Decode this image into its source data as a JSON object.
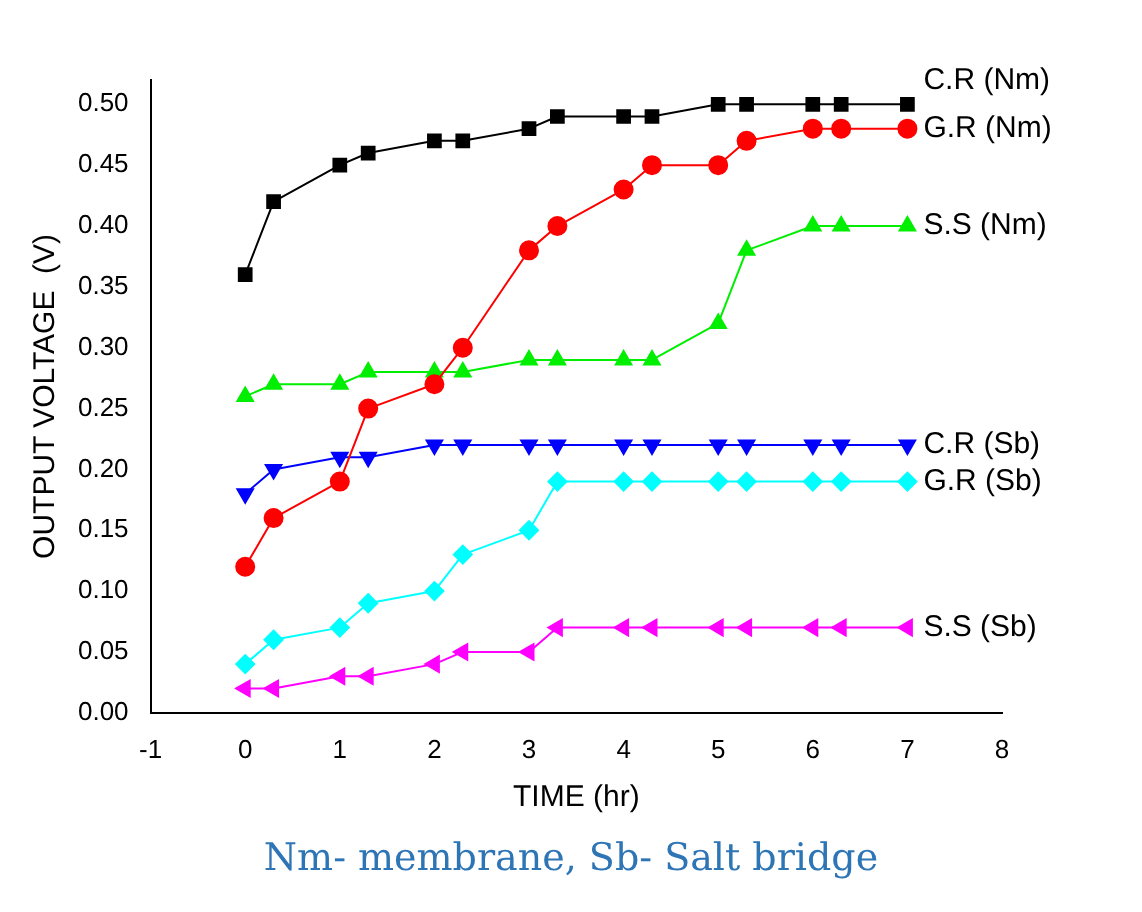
{
  "chart_data": {
    "type": "line",
    "xlabel": "TIME (hr)",
    "ylabel": "OUTPUT VOLTAGE  (V)",
    "x": [
      0,
      0.3,
      1,
      1.3,
      2,
      2.3,
      3,
      3.3,
      4,
      4.3,
      5,
      5.3,
      6,
      6.3,
      7
    ],
    "series": [
      {
        "name": "C.R (Nm)",
        "color": "#000000",
        "marker": "square",
        "values": [
          0.36,
          0.42,
          0.45,
          0.46,
          0.47,
          0.47,
          0.48,
          0.49,
          0.49,
          0.49,
          0.5,
          0.5,
          0.5,
          0.5,
          0.5
        ]
      },
      {
        "name": "G.R (Nm)",
        "color": "#ff0000",
        "marker": "circle",
        "values": [
          0.12,
          0.16,
          0.19,
          0.25,
          0.27,
          0.3,
          0.38,
          0.4,
          0.43,
          0.45,
          0.45,
          0.47,
          0.48,
          0.48,
          0.48
        ]
      },
      {
        "name": "S.S (Nm)",
        "color": "#00ee00",
        "marker": "triangle",
        "values": [
          0.26,
          0.27,
          0.27,
          0.28,
          0.28,
          0.28,
          0.29,
          0.29,
          0.29,
          0.29,
          0.32,
          0.38,
          0.4,
          0.4,
          0.4
        ]
      },
      {
        "name": "C.R (Sb)",
        "color": "#0000ff",
        "marker": "triangle-down",
        "values": [
          0.18,
          0.2,
          0.21,
          0.21,
          0.22,
          0.22,
          0.22,
          0.22,
          0.22,
          0.22,
          0.22,
          0.22,
          0.22,
          0.22,
          0.22
        ]
      },
      {
        "name": "G.R (Sb)",
        "color": "#00ffff",
        "marker": "diamond",
        "values": [
          0.04,
          0.06,
          0.07,
          0.09,
          0.1,
          0.13,
          0.15,
          0.19,
          0.19,
          0.19,
          0.19,
          0.19,
          0.19,
          0.19,
          0.19
        ]
      },
      {
        "name": "S.S (Sb)",
        "color": "#ff00ff",
        "marker": "triangle-left",
        "values": [
          0.02,
          0.02,
          0.03,
          0.03,
          0.04,
          0.05,
          0.05,
          0.07,
          0.07,
          0.07,
          0.07,
          0.07,
          0.07,
          0.07,
          0.07
        ]
      }
    ],
    "xlim": [
      -1,
      8
    ],
    "xticks": [
      -1,
      0,
      1,
      2,
      3,
      4,
      5,
      6,
      7,
      8
    ],
    "ylim": [
      0,
      0.52
    ],
    "yticks": [
      {
        "value": 0,
        "label": "0.00"
      },
      {
        "value": 0.05,
        "label": "0.05"
      },
      {
        "value": 0.1,
        "label": "0.10"
      },
      {
        "value": 0.15,
        "label": "0.15"
      },
      {
        "value": 0.2,
        "label": "0.20"
      },
      {
        "value": 0.25,
        "label": "0.25"
      },
      {
        "value": 0.3,
        "label": "0.30"
      },
      {
        "value": 0.35,
        "label": "0.35"
      },
      {
        "value": 0.4,
        "label": "0.40"
      },
      {
        "value": 0.45,
        "label": "0.45"
      },
      {
        "value": 0.5,
        "label": "0.50"
      }
    ],
    "grid": false,
    "legend": false,
    "annotations": [
      "Nm- membrane, Sb- Salt bridge"
    ]
  }
}
